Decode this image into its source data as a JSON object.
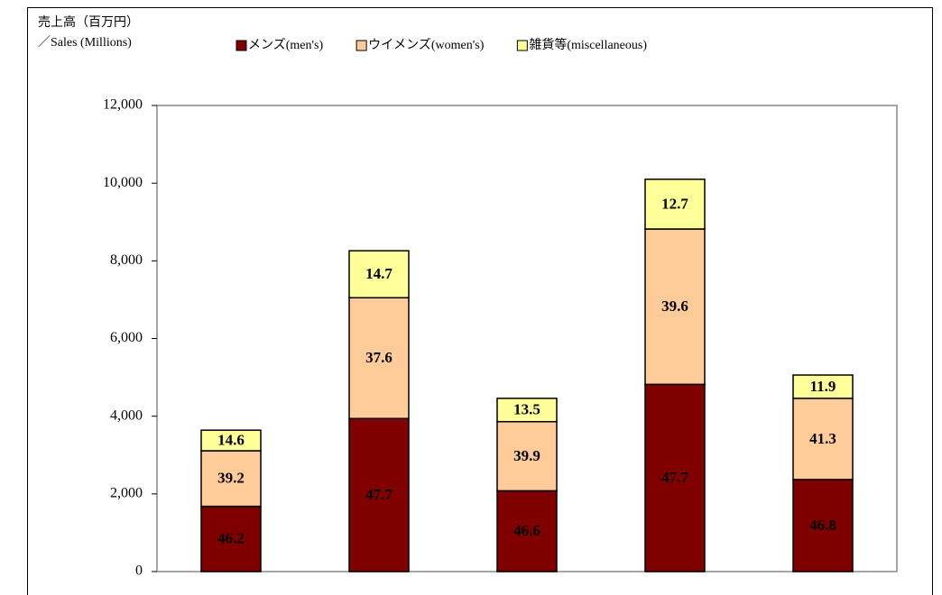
{
  "chart_data": {
    "type": "stacked_bar",
    "ylabel": [
      "売上高（百万円）",
      "／Sales (Millions)"
    ],
    "categories": [
      null,
      null,
      null,
      null,
      null
    ],
    "series": [
      {
        "name": "メンズ(men's)",
        "color": "#800000",
        "label_color": "#ffffff",
        "values": [
          1680,
          3940,
          2080,
          4820,
          2370
        ],
        "value_labels": [
          "46.2",
          "47.7",
          "46.6",
          "47.7",
          "46.8"
        ]
      },
      {
        "name": "ウイメンズ(women's)",
        "color": "#ffcc99",
        "label_color": "#000000",
        "values": [
          1430,
          3110,
          1780,
          4000,
          2090
        ],
        "value_labels": [
          "39.2",
          "37.6",
          "39.9",
          "39.6",
          "41.3"
        ]
      },
      {
        "name": "雑貨等(miscellaneous)",
        "color": "#ffff99",
        "label_color": "#000000",
        "values": [
          530,
          1210,
          600,
          1280,
          600
        ],
        "value_labels": [
          "14.6",
          "14.7",
          "13.5",
          "12.7",
          "11.9"
        ]
      }
    ],
    "ylim": [
      0,
      12000
    ],
    "yticks": [
      0,
      {
        "value": 2000,
        "label": "2,000"
      },
      {
        "value": 4000,
        "label": "4,000"
      },
      {
        "value": 6000,
        "label": "6,000"
      },
      {
        "value": 8000,
        "label": "8,000"
      },
      {
        "value": 10000,
        "label": "10,000"
      },
      {
        "value": 12000,
        "label": "12,000"
      }
    ],
    "legend": "top"
  }
}
